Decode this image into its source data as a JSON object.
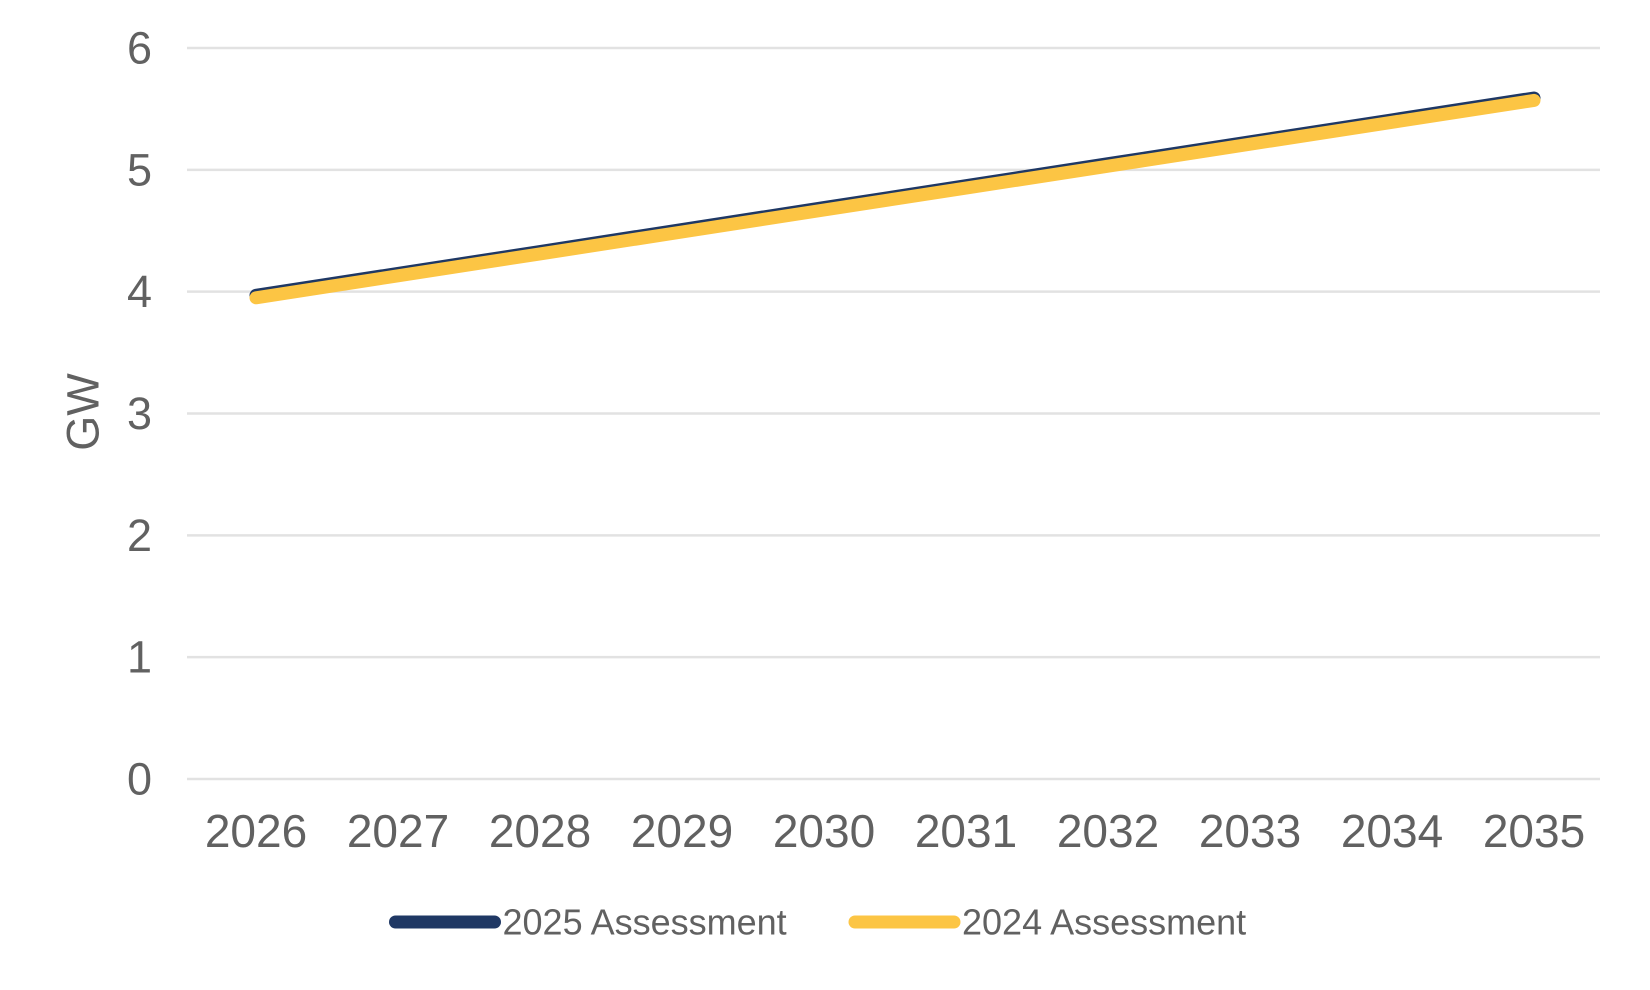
{
  "chart_data": {
    "type": "line",
    "x": [
      2026,
      2027,
      2028,
      2029,
      2030,
      2031,
      2032,
      2033,
      2034,
      2035
    ],
    "series": [
      {
        "name": "2025 Assessment",
        "color": "#1f3864",
        "values": [
          3.97,
          4.15,
          4.33,
          4.51,
          4.69,
          4.87,
          5.05,
          5.23,
          5.41,
          5.59
        ]
      },
      {
        "name": "2024 Assessment",
        "color": "#fcc544",
        "values": [
          3.95,
          4.13,
          4.31,
          4.49,
          4.67,
          4.85,
          5.03,
          5.21,
          5.39,
          5.57
        ]
      }
    ],
    "title": "",
    "xlabel": "",
    "ylabel": "GW",
    "ylim": [
      0,
      6
    ],
    "yticks": [
      0,
      1,
      2,
      3,
      4,
      5,
      6
    ],
    "grid": true,
    "legend_position": "bottom"
  },
  "style": {
    "grid_color": "#e2e2e2",
    "tick_label_color": "#616161",
    "legend_label_color": "#616161",
    "background": "#ffffff"
  }
}
